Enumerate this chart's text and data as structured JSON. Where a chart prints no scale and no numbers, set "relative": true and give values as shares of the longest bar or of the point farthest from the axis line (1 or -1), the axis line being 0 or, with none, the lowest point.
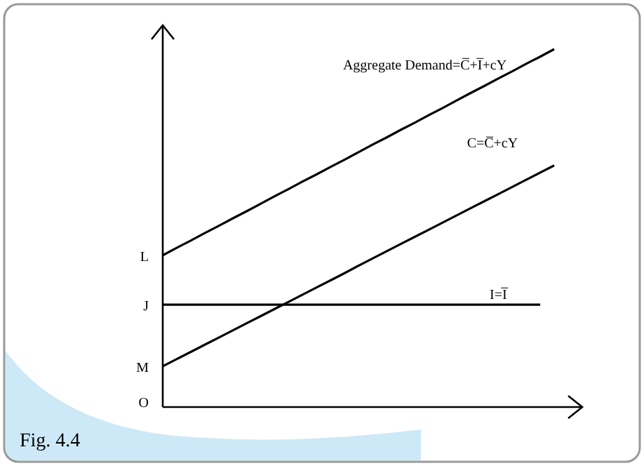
{
  "chart_data": {
    "type": "line",
    "relative": true,
    "categories": [
      null,
      null,
      null,
      null,
      null,
      null,
      null,
      null,
      null,
      null,
      null,
      null,
      null,
      null,
      null,
      null,
      null,
      null,
      null,
      null,
      null,
      null,
      null,
      null,
      null,
      null,
      null,
      null,
      null
    ],
    "series": [
      {
        "name": "Aggregate Demand=C̅+I̅+cY",
        "color": "#000000",
        "values": [
          0.424,
          0.445,
          0.465,
          0.486,
          0.506,
          0.527,
          0.547,
          0.568,
          0.589,
          0.609,
          0.63,
          0.65,
          0.671,
          0.691,
          0.712,
          0.733,
          0.753,
          0.774,
          0.794,
          0.815,
          0.835,
          0.856,
          0.877,
          0.897,
          0.918,
          0.938,
          0.959,
          0.979,
          1
        ]
      },
      {
        "name": "C=C̅+cY",
        "color": "#000000",
        "values": [
          0.114,
          0.134,
          0.154,
          0.174,
          0.194,
          0.214,
          0.234,
          0.254,
          0.274,
          0.294,
          0.314,
          0.334,
          0.354,
          0.374,
          0.395,
          0.415,
          0.435,
          0.455,
          0.475,
          0.495,
          0.515,
          0.535,
          0.555,
          0.575,
          0.595,
          0.615,
          0.635,
          0.655,
          0.675
        ]
      },
      {
        "name": "I=I̅",
        "color": "#000000",
        "values": [
          0.286,
          0.286,
          0.286,
          0.286,
          0.286,
          0.286,
          0.286,
          0.286,
          0.286,
          0.286,
          0.286,
          0.286,
          0.286,
          0.286,
          0.286,
          0.286,
          0.286,
          0.286,
          0.286,
          0.286,
          0.286,
          0.286,
          0.286,
          0.286,
          0.286,
          0.286,
          0.286,
          0.286,
          null
        ]
      }
    ],
    "annotations": [
      "O",
      "M",
      "J",
      "L",
      "Fig. 4.4"
    ],
    "legend": false
  }
}
